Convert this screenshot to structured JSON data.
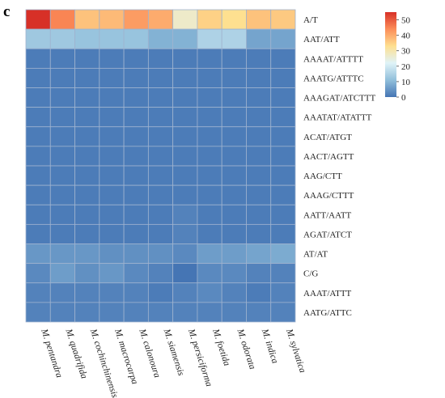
{
  "panel_label": "c",
  "chart_data": {
    "type": "heatmap",
    "title": "",
    "xlabel": "",
    "ylabel": "",
    "columns": [
      "M. pentandra",
      "M. quadrifida",
      "M. cochinchinensis",
      "M. macrocarpa",
      "M. calonoura",
      "M. siamensis",
      "M. persiciforma",
      "M. foetida",
      "M. odorata",
      "M. indica",
      "M. sylvatica"
    ],
    "rows": [
      "A/T",
      "AAT/ATT",
      "AAAAT/ATTTT",
      "AAATG/ATTTC",
      "AAAGAT/ATCTTT",
      "AAATAT/ATATTT",
      "ACAT/ATGT",
      "AACT/AGTT",
      "AAG/CTT",
      "AAAG/CTTT",
      "AATT/AATT",
      "AGAT/ATCT",
      "AT/AT",
      "C/G",
      "AAAT/ATTT",
      "AATG/ATTC"
    ],
    "values": [
      [
        55,
        45,
        37,
        38,
        42,
        40,
        27,
        35,
        33,
        37,
        36
      ],
      [
        13,
        13,
        12,
        12,
        12,
        9,
        9,
        15,
        15,
        7,
        7
      ],
      [
        1,
        1,
        1,
        1,
        1,
        1,
        1,
        1,
        1,
        1,
        1
      ],
      [
        1,
        1,
        1,
        1,
        1,
        1,
        1,
        1,
        1,
        1,
        1
      ],
      [
        1,
        1,
        1,
        1,
        1,
        1,
        1,
        1,
        1,
        1,
        1
      ],
      [
        1,
        1,
        1,
        1,
        1,
        1,
        1,
        1,
        1,
        1,
        1
      ],
      [
        1,
        1,
        1,
        1,
        1,
        1,
        1,
        1,
        1,
        1,
        1
      ],
      [
        1,
        1,
        1,
        1,
        1,
        1,
        1,
        1,
        1,
        1,
        1
      ],
      [
        1,
        1,
        1,
        1,
        1,
        1,
        1,
        1,
        1,
        1,
        1
      ],
      [
        1,
        1,
        1,
        1,
        1,
        1,
        1,
        1,
        1,
        1,
        1
      ],
      [
        1,
        1,
        1,
        1,
        1,
        1,
        2,
        1,
        1,
        1,
        1
      ],
      [
        1,
        1,
        1,
        1,
        1,
        1,
        2,
        1,
        1,
        1,
        1
      ],
      [
        5,
        5,
        5,
        4,
        4,
        4,
        3,
        6,
        6,
        7,
        8
      ],
      [
        3,
        6,
        4,
        5,
        3,
        2,
        0,
        3,
        3,
        2,
        2
      ],
      [
        2,
        2,
        2,
        2,
        2,
        1,
        2,
        3,
        2,
        1,
        2
      ],
      [
        2,
        2,
        2,
        2,
        2,
        2,
        2,
        2,
        2,
        2,
        2
      ]
    ],
    "colorbar": {
      "min": 0,
      "max": 55,
      "ticks": [
        0,
        10,
        20,
        30,
        40,
        50
      ],
      "colors": [
        "#4575b4",
        "#91bfdb",
        "#e0f3f8",
        "#fee090",
        "#fc8d59",
        "#d73027"
      ]
    },
    "legend_placement": "top-right",
    "grid": true
  }
}
